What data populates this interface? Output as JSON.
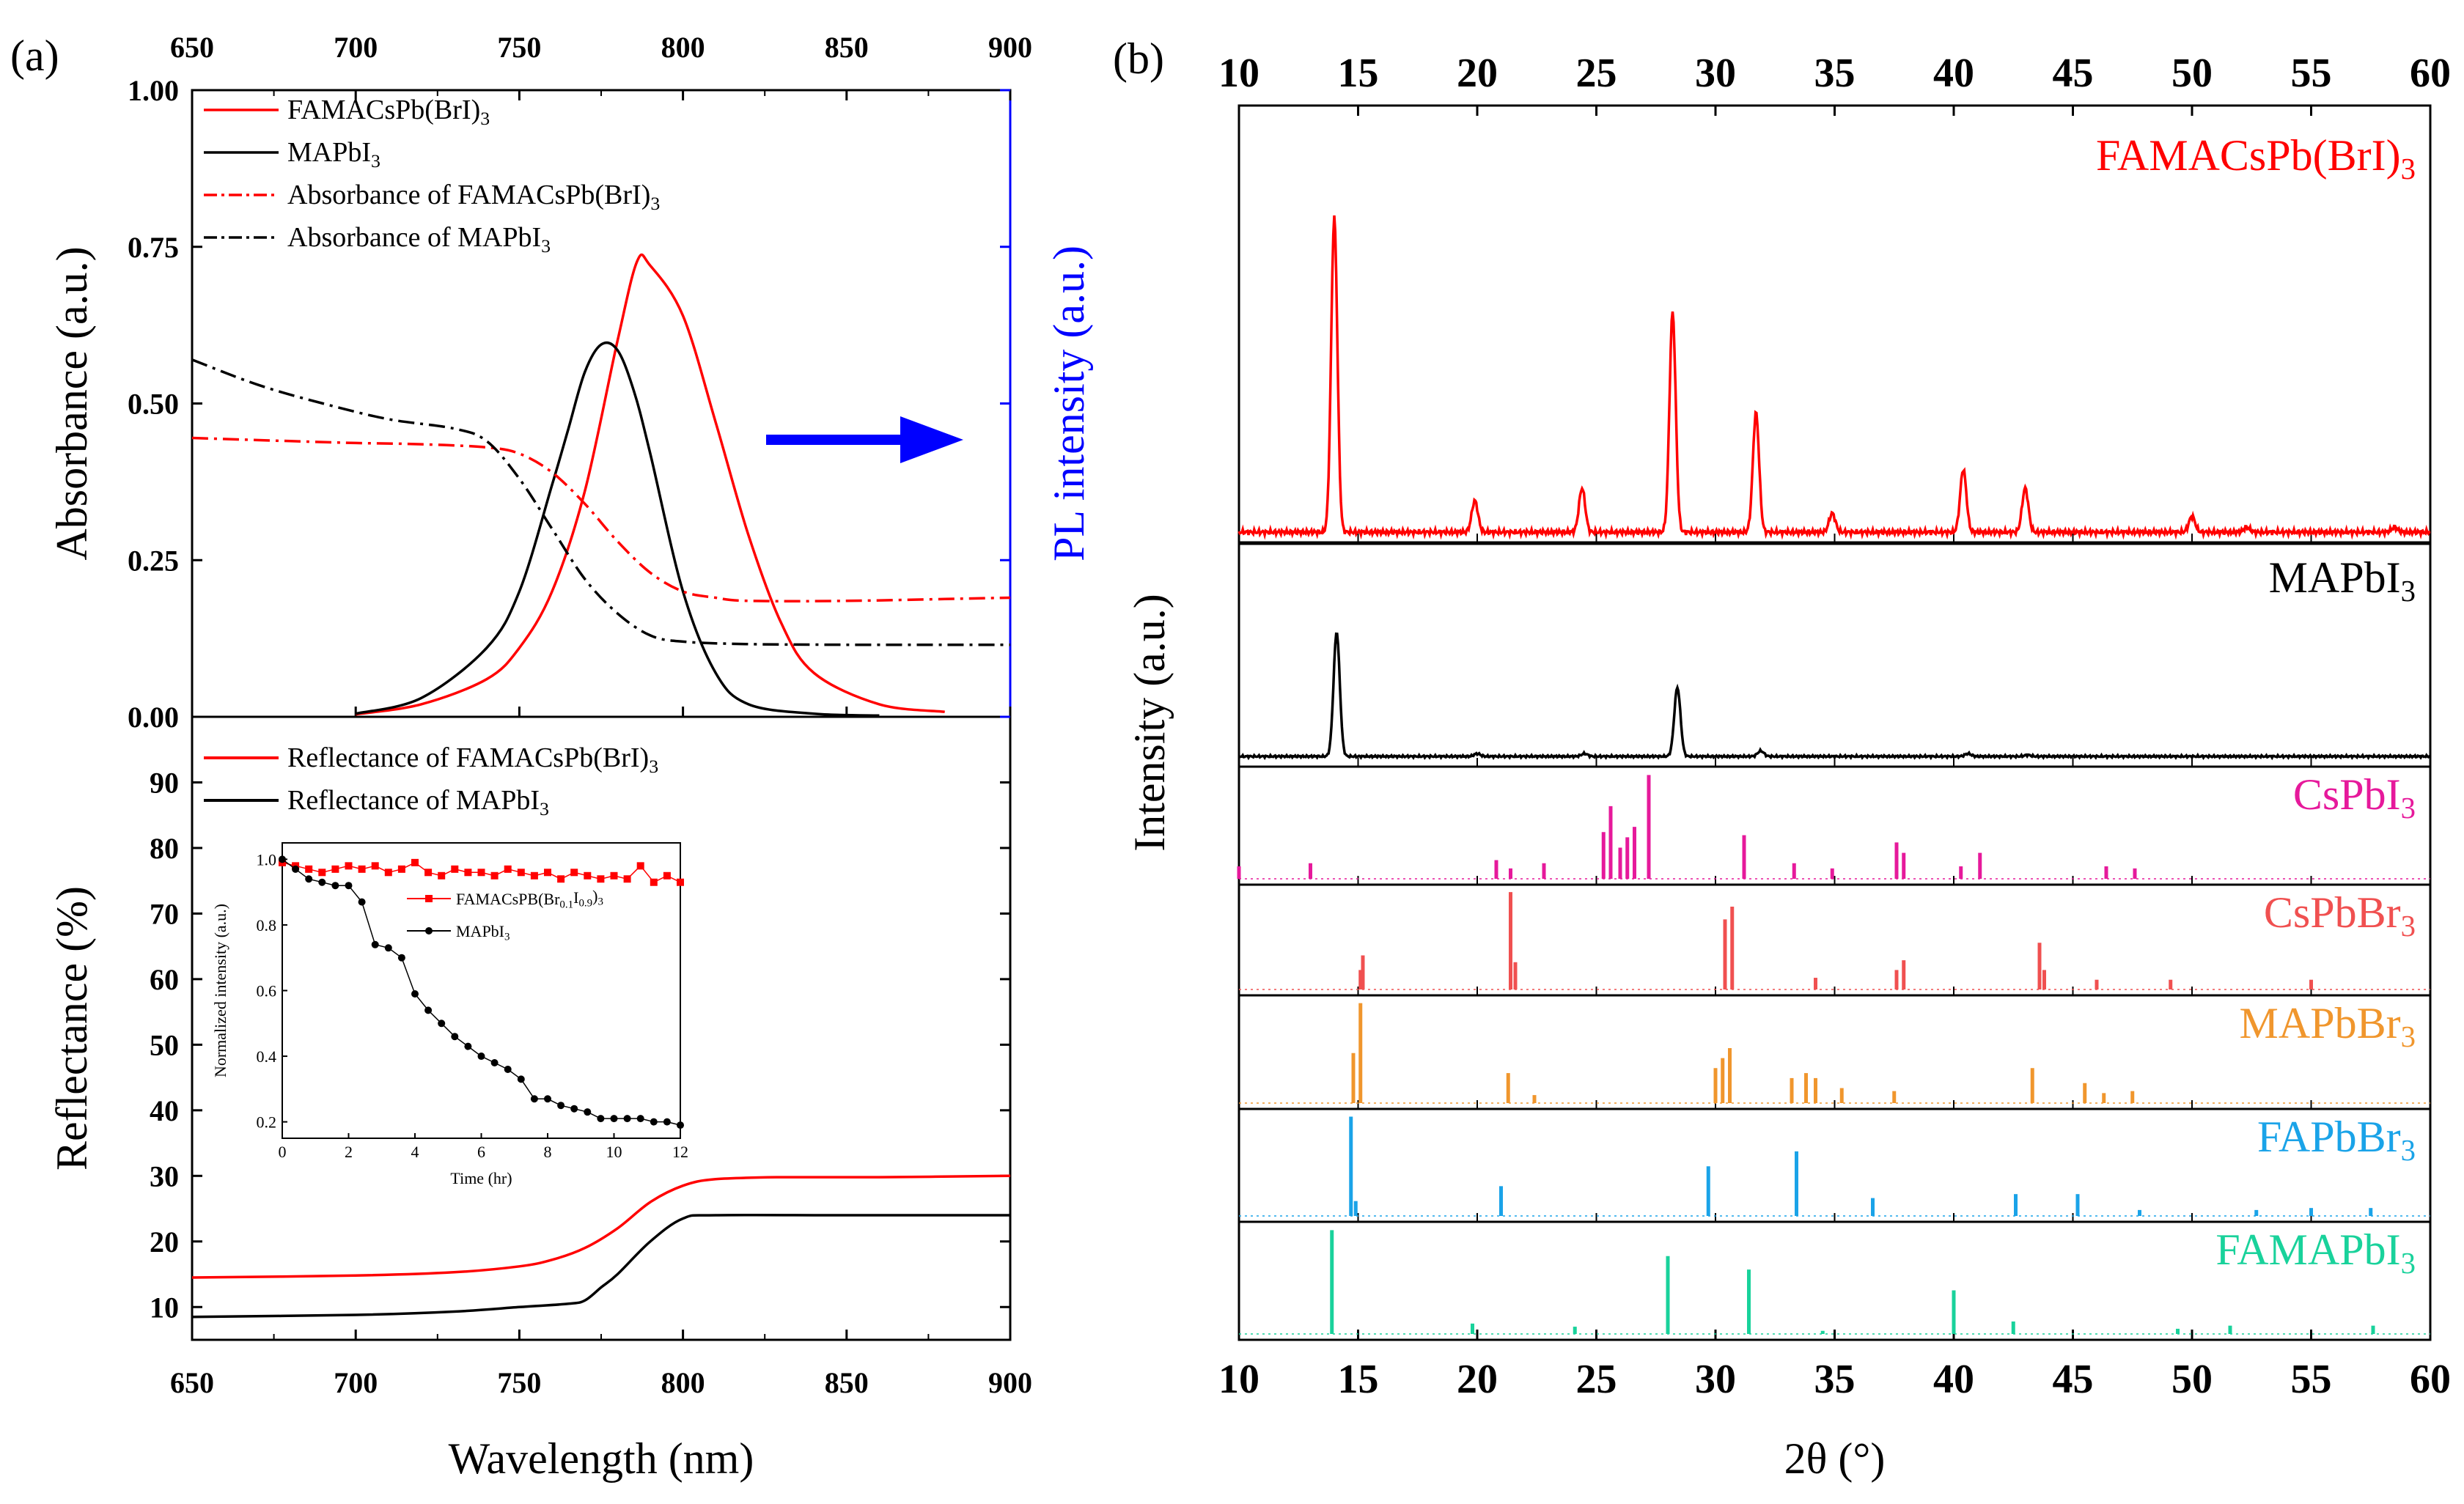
{
  "panel_a": {
    "label": "(a)",
    "top": {
      "ylabel": "Absorbance (a.u.)",
      "y2label": "PL intensity (a.u.)",
      "xlim": [
        650,
        900
      ],
      "ylim": [
        0,
        1
      ],
      "xticks": [
        "650",
        "700",
        "750",
        "800",
        "850",
        "900"
      ],
      "yticks": [
        "0.00",
        "0.25",
        "0.50",
        "0.75",
        "1.00"
      ],
      "legend": [
        {
          "name": "FAMACsPb(BrI)",
          "sub": "3",
          "style": "solid",
          "color": "#ff0000"
        },
        {
          "name": "MAPbI",
          "sub": "3",
          "style": "solid",
          "color": "#000000"
        },
        {
          "name": "Absorbance of FAMACsPb(BrI)",
          "sub": "3",
          "style": "dashdot",
          "color": "#ff0000"
        },
        {
          "name": "Absorbance of MAPbI",
          "sub": "3",
          "style": "dashdot",
          "color": "#000000"
        }
      ]
    },
    "bottom": {
      "ylabel": "Reflectance (%)",
      "xlabel": "Wavelength (nm)",
      "xlim": [
        650,
        900
      ],
      "ylim": [
        5,
        100
      ],
      "xticks": [
        "650",
        "700",
        "750",
        "800",
        "850",
        "900"
      ],
      "yticks": [
        "10",
        "20",
        "30",
        "40",
        "50",
        "60",
        "70",
        "80",
        "90"
      ],
      "legend": [
        {
          "name": "Reflectance of FAMACsPb(BrI)",
          "sub": "3",
          "color": "#ff0000"
        },
        {
          "name": "Reflectance of MAPbI",
          "sub": "3",
          "color": "#000000"
        }
      ]
    },
    "inset": {
      "xlabel": "Time (hr)",
      "ylabel": "Normalized intensity (a.u.)",
      "xticks": [
        "0",
        "2",
        "4",
        "6",
        "8",
        "10",
        "12"
      ],
      "yticks": [
        "0.2",
        "0.4",
        "0.6",
        "0.8",
        "1.0"
      ],
      "legend": [
        {
          "name": "FAMACsPB(Br",
          "sub1": "0.1",
          "mid": "I",
          "sub2": "0.9",
          "tail": ")",
          "sub3": "3",
          "color": "#ff0000"
        },
        {
          "name": "MAPbI",
          "sub": "3",
          "color": "#000000"
        }
      ]
    }
  },
  "panel_b": {
    "label": "(b)",
    "xlabel": "2θ (°)",
    "ylabel": "Intensity (a.u.)",
    "xticks": [
      "10",
      "15",
      "20",
      "25",
      "30",
      "35",
      "40",
      "45",
      "50",
      "55",
      "60"
    ],
    "sublabels": [
      {
        "name": "FAMACsPb(BrI)",
        "sub": "3",
        "color": "#ff0000"
      },
      {
        "name": "MAPbI",
        "sub": "3",
        "color": "#000000"
      },
      {
        "name": "CsPbI",
        "sub": "3",
        "color": "#e6199b"
      },
      {
        "name": "CsPbBr",
        "sub": "3",
        "color": "#f05050"
      },
      {
        "name": "MAPbBr",
        "sub": "3",
        "color": "#f0962d"
      },
      {
        "name": "FAPbBr",
        "sub": "3",
        "color": "#1aa3e8"
      },
      {
        "name": "FAMAPbI",
        "sub": "3",
        "color": "#19d29b"
      }
    ]
  },
  "chart_data": [
    {
      "type": "line",
      "title": "",
      "xlabel": "Wavelength (nm)",
      "ylabel": "Absorbance (a.u.)",
      "xlim": [
        650,
        900
      ],
      "ylim": [
        0,
        1
      ],
      "series": [
        {
          "name": "FAMACsPb(BrI)3",
          "color": "#ff0000",
          "style": "solid",
          "x": [
            700,
            720,
            740,
            750,
            760,
            770,
            780,
            786,
            790,
            800,
            810,
            820,
            830,
            840,
            860,
            880
          ],
          "y": [
            0.004,
            0.02,
            0.06,
            0.11,
            0.2,
            0.36,
            0.6,
            0.727,
            0.72,
            0.64,
            0.47,
            0.29,
            0.15,
            0.07,
            0.02,
            0.008
          ]
        },
        {
          "name": "MAPbI3",
          "color": "#000000",
          "style": "solid",
          "x": [
            700,
            720,
            740,
            750,
            760,
            765,
            770,
            775,
            780,
            785,
            790,
            800,
            810,
            820,
            840,
            860
          ],
          "y": [
            0.005,
            0.03,
            0.11,
            0.2,
            0.37,
            0.46,
            0.55,
            0.594,
            0.585,
            0.52,
            0.42,
            0.2,
            0.07,
            0.02,
            0.005,
            0.002
          ]
        },
        {
          "name": "Absorbance of FAMACsPb(BrI)3",
          "color": "#ff0000",
          "style": "dashdot",
          "x": [
            650,
            680,
            700,
            720,
            740,
            750,
            760,
            770,
            780,
            790,
            800,
            810,
            820,
            850,
            880,
            900
          ],
          "y": [
            0.445,
            0.44,
            0.437,
            0.435,
            0.43,
            0.42,
            0.39,
            0.34,
            0.28,
            0.23,
            0.2,
            0.19,
            0.185,
            0.185,
            0.188,
            0.19
          ]
        },
        {
          "name": "Absorbance of MAPbI3",
          "color": "#000000",
          "style": "dashdot",
          "x": [
            650,
            670,
            690,
            710,
            730,
            740,
            750,
            760,
            770,
            780,
            790,
            800,
            820,
            850,
            880,
            900
          ],
          "y": [
            0.57,
            0.53,
            0.5,
            0.475,
            0.46,
            0.44,
            0.38,
            0.3,
            0.22,
            0.165,
            0.13,
            0.12,
            0.116,
            0.115,
            0.115,
            0.115
          ]
        }
      ]
    },
    {
      "type": "line",
      "title": "",
      "xlabel": "Wavelength (nm)",
      "ylabel": "Reflectance (%)",
      "xlim": [
        650,
        900
      ],
      "ylim": [
        5,
        100
      ],
      "series": [
        {
          "name": "Reflectance of FAMACsPb(BrI)3",
          "color": "#ff0000",
          "x": [
            650,
            700,
            730,
            750,
            760,
            770,
            780,
            790,
            800,
            810,
            830,
            860,
            900
          ],
          "y": [
            14.5,
            14.8,
            15.3,
            16.2,
            17.2,
            19,
            22,
            26,
            28.5,
            29.5,
            29.8,
            29.8,
            30
          ]
        },
        {
          "name": "Reflectance of MAPbI3",
          "color": "#000000",
          "x": [
            650,
            700,
            730,
            750,
            765,
            770,
            775,
            780,
            790,
            800,
            810,
            850,
            900
          ],
          "y": [
            8.5,
            8.8,
            9.3,
            10,
            10.5,
            11,
            13,
            15,
            20,
            23.5,
            24,
            24,
            24
          ]
        }
      ]
    },
    {
      "type": "line",
      "title": "",
      "xlabel": "Time (hr)",
      "ylabel": "Normalized intensity (a.u.)",
      "xlim": [
        0,
        12
      ],
      "ylim": [
        0.15,
        1.05
      ],
      "series": [
        {
          "name": "FAMACsPB(Br0.1I0.9)3",
          "color": "#ff0000",
          "x": [
            0,
            0.4,
            0.8,
            1.2,
            1.6,
            2,
            2.4,
            2.8,
            3.2,
            3.6,
            4,
            4.4,
            4.8,
            5.2,
            5.6,
            6,
            6.4,
            6.8,
            7.2,
            7.6,
            8,
            8.4,
            8.8,
            9.2,
            9.6,
            10,
            10.4,
            10.8,
            11.2,
            11.6,
            12
          ],
          "y": [
            0.99,
            0.98,
            0.97,
            0.96,
            0.97,
            0.98,
            0.97,
            0.98,
            0.96,
            0.97,
            0.99,
            0.96,
            0.95,
            0.97,
            0.96,
            0.96,
            0.95,
            0.97,
            0.96,
            0.95,
            0.96,
            0.94,
            0.96,
            0.95,
            0.94,
            0.95,
            0.94,
            0.98,
            0.93,
            0.95,
            0.93
          ]
        },
        {
          "name": "MAPbI3",
          "color": "#000000",
          "x": [
            0,
            0.4,
            0.8,
            1.2,
            1.6,
            2,
            2.4,
            2.8,
            3.2,
            3.6,
            4,
            4.4,
            4.8,
            5.2,
            5.6,
            6,
            6.4,
            6.8,
            7.2,
            7.6,
            8,
            8.4,
            8.8,
            9.2,
            9.6,
            10,
            10.4,
            10.8,
            11.2,
            11.6,
            12
          ],
          "y": [
            1.0,
            0.97,
            0.94,
            0.93,
            0.92,
            0.92,
            0.87,
            0.74,
            0.73,
            0.7,
            0.59,
            0.54,
            0.5,
            0.46,
            0.43,
            0.4,
            0.38,
            0.36,
            0.33,
            0.27,
            0.27,
            0.25,
            0.24,
            0.23,
            0.21,
            0.21,
            0.21,
            0.21,
            0.2,
            0.2,
            0.19
          ]
        }
      ]
    },
    {
      "type": "line",
      "title": "",
      "xlabel": "2θ (°)",
      "ylabel": "Intensity (a.u.)",
      "xlim": [
        10,
        60
      ],
      "series": [
        {
          "name": "FAMACsPb(BrI)3",
          "color": "#ff0000",
          "peaks": [
            [
              14.0,
              1.0
            ],
            [
              19.9,
              0.1
            ],
            [
              24.4,
              0.14
            ],
            [
              28.2,
              0.7
            ],
            [
              31.7,
              0.38
            ],
            [
              34.9,
              0.06
            ],
            [
              40.4,
              0.2
            ],
            [
              43.0,
              0.14
            ],
            [
              50.0,
              0.05
            ],
            [
              52.3,
              0.015
            ],
            [
              58.5,
              0.015
            ]
          ]
        },
        {
          "name": "MAPbI3",
          "color": "#000000",
          "peaks": [
            [
              14.1,
              0.9
            ],
            [
              20.0,
              0.02
            ],
            [
              24.5,
              0.02
            ],
            [
              28.4,
              0.5
            ],
            [
              31.9,
              0.04
            ],
            [
              40.6,
              0.02
            ],
            [
              43.1,
              0.01
            ]
          ]
        },
        {
          "name": "CsPbI3",
          "color": "#e6199b",
          "peaks": [
            [
              10.0,
              0.12
            ],
            [
              13.0,
              0.15
            ],
            [
              20.8,
              0.18
            ],
            [
              21.4,
              0.1
            ],
            [
              22.8,
              0.15
            ],
            [
              25.3,
              0.45
            ],
            [
              25.6,
              0.7
            ],
            [
              26.0,
              0.3
            ],
            [
              26.3,
              0.4
            ],
            [
              26.6,
              0.5
            ],
            [
              27.2,
              1.0
            ],
            [
              31.2,
              0.42
            ],
            [
              33.3,
              0.15
            ],
            [
              34.9,
              0.1
            ],
            [
              37.6,
              0.35
            ],
            [
              37.9,
              0.25
            ],
            [
              40.3,
              0.12
            ],
            [
              41.1,
              0.25
            ],
            [
              46.4,
              0.12
            ],
            [
              47.6,
              0.1
            ]
          ]
        },
        {
          "name": "CsPbBr3",
          "color": "#f05050",
          "peaks": [
            [
              15.1,
              0.2
            ],
            [
              15.2,
              0.35
            ],
            [
              21.4,
              1.0
            ],
            [
              21.6,
              0.28
            ],
            [
              30.4,
              0.72
            ],
            [
              30.7,
              0.85
            ],
            [
              34.2,
              0.12
            ],
            [
              37.6,
              0.2
            ],
            [
              37.9,
              0.3
            ],
            [
              43.6,
              0.48
            ],
            [
              43.8,
              0.2
            ],
            [
              46.0,
              0.1
            ],
            [
              49.1,
              0.1
            ],
            [
              55.0,
              0.1
            ]
          ]
        },
        {
          "name": "MAPbBr3",
          "color": "#f0962d",
          "peaks": [
            [
              14.8,
              0.5
            ],
            [
              15.1,
              1.0
            ],
            [
              21.3,
              0.3
            ],
            [
              22.4,
              0.08
            ],
            [
              30.0,
              0.35
            ],
            [
              30.3,
              0.45
            ],
            [
              30.6,
              0.55
            ],
            [
              33.2,
              0.25
            ],
            [
              33.8,
              0.3
            ],
            [
              34.2,
              0.25
            ],
            [
              35.3,
              0.15
            ],
            [
              37.5,
              0.12
            ],
            [
              43.3,
              0.35
            ],
            [
              45.5,
              0.2
            ],
            [
              46.3,
              0.1
            ],
            [
              47.5,
              0.12
            ]
          ]
        },
        {
          "name": "FAPbBr3",
          "color": "#1aa3e8",
          "peaks": [
            [
              14.7,
              1.0
            ],
            [
              14.9,
              0.15
            ],
            [
              21.0,
              0.3
            ],
            [
              29.7,
              0.5
            ],
            [
              33.4,
              0.65
            ],
            [
              36.6,
              0.18
            ],
            [
              42.6,
              0.22
            ],
            [
              45.2,
              0.22
            ],
            [
              47.8,
              0.06
            ],
            [
              52.7,
              0.06
            ],
            [
              55.0,
              0.08
            ],
            [
              57.5,
              0.08
            ]
          ]
        },
        {
          "name": "FAMAPbI3",
          "color": "#19d29b",
          "peaks": [
            [
              13.9,
              1.0
            ],
            [
              19.8,
              0.1
            ],
            [
              24.1,
              0.07
            ],
            [
              28.0,
              0.75
            ],
            [
              31.4,
              0.62
            ],
            [
              34.5,
              0.03
            ],
            [
              40.0,
              0.42
            ],
            [
              42.5,
              0.12
            ],
            [
              49.4,
              0.05
            ],
            [
              51.6,
              0.08
            ],
            [
              57.6,
              0.08
            ]
          ]
        }
      ]
    }
  ]
}
